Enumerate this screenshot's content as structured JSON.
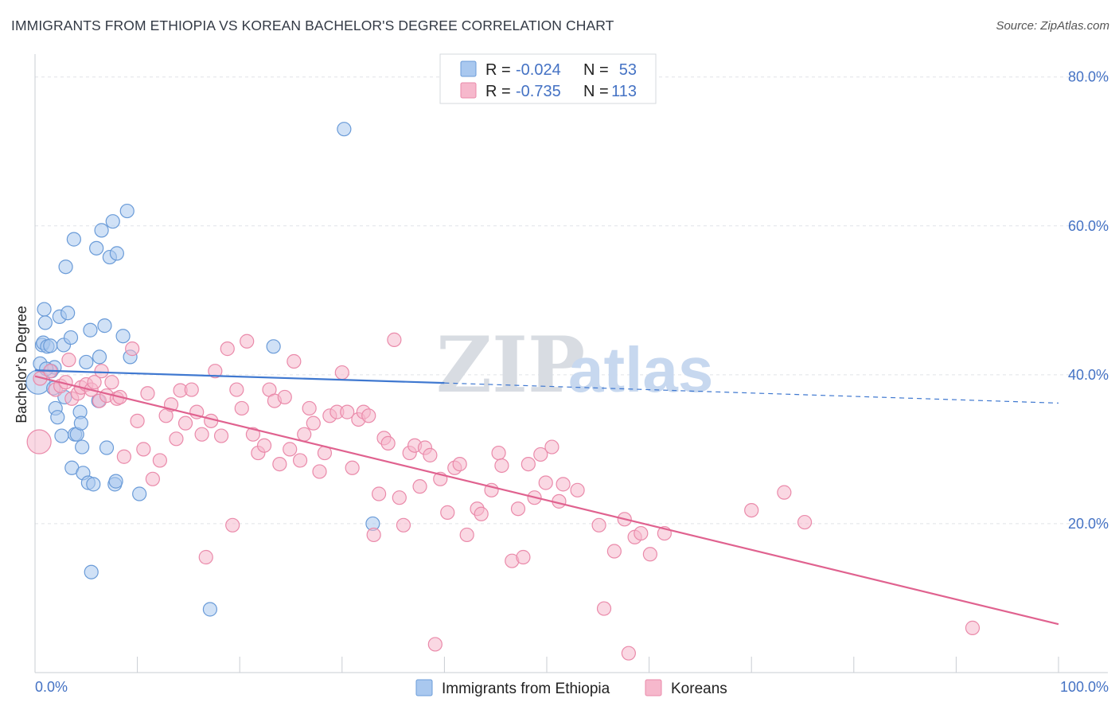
{
  "title": "IMMIGRANTS FROM ETHIOPIA VS KOREAN BACHELOR'S DEGREE CORRELATION CHART",
  "source": "Source: ZipAtlas.com",
  "watermark": {
    "zip": "ZIP",
    "atlas": "atlas"
  },
  "legend": {
    "rows": [
      {
        "r_label": "R =",
        "r_value": "-0.024",
        "n_label": "N =",
        "n_value": "53",
        "color": "#a9c8ef"
      },
      {
        "r_label": "R =",
        "r_value": "-0.735",
        "n_label": "N =",
        "n_value": "113",
        "color": "#f6b8cc"
      }
    ]
  },
  "chart_data": {
    "type": "scatter",
    "title": "IMMIGRANTS FROM ETHIOPIA VS KOREAN BACHELOR'S DEGREE CORRELATION CHART",
    "xlabel": "",
    "ylabel": "Bachelor's Degree",
    "xlim": [
      0,
      100
    ],
    "ylim": [
      0,
      82
    ],
    "x_tick_labels": [
      "0.0%",
      "100.0%"
    ],
    "y_ticks": [
      {
        "value": 80,
        "label": "80.0%"
      },
      {
        "value": 60,
        "label": "60.0%"
      },
      {
        "value": 40,
        "label": "40.0%"
      },
      {
        "value": 20,
        "label": "20.0%"
      }
    ],
    "grid": "horizontal dashed",
    "legend_placement": "top-center",
    "series": [
      {
        "name": "Immigrants from Ethiopia",
        "color": "#a9c8ef",
        "stroke": "#6a9bd8",
        "trend": {
          "x0": 0,
          "y0": 40.6,
          "x1": 40,
          "y1": 38.9,
          "dashed_to_x": 100,
          "dashed_to_y": 36.2,
          "color": "#3f78d0"
        },
        "points": [
          [
            0.3,
            39.0
          ],
          [
            0.5,
            41.5
          ],
          [
            0.7,
            44.0
          ],
          [
            0.8,
            44.3
          ],
          [
            0.9,
            48.8
          ],
          [
            1.0,
            47.0
          ],
          [
            1.2,
            43.8
          ],
          [
            1.5,
            43.9
          ],
          [
            1.6,
            40.5
          ],
          [
            1.8,
            38.2
          ],
          [
            1.9,
            41.0
          ],
          [
            2.0,
            35.5
          ],
          [
            2.2,
            34.3
          ],
          [
            2.4,
            47.8
          ],
          [
            2.6,
            31.8
          ],
          [
            2.8,
            44.0
          ],
          [
            2.9,
            37.0
          ],
          [
            3.0,
            54.5
          ],
          [
            3.2,
            48.3
          ],
          [
            3.5,
            45.0
          ],
          [
            3.6,
            27.5
          ],
          [
            3.8,
            58.2
          ],
          [
            3.9,
            32.0
          ],
          [
            4.1,
            32.0
          ],
          [
            4.4,
            35.0
          ],
          [
            4.5,
            33.5
          ],
          [
            4.6,
            30.3
          ],
          [
            4.7,
            26.8
          ],
          [
            5.0,
            41.7
          ],
          [
            5.2,
            25.5
          ],
          [
            5.4,
            46.0
          ],
          [
            5.5,
            13.5
          ],
          [
            5.7,
            25.3
          ],
          [
            6.0,
            57.0
          ],
          [
            6.2,
            36.5
          ],
          [
            6.3,
            42.4
          ],
          [
            6.5,
            59.4
          ],
          [
            6.8,
            46.6
          ],
          [
            7.0,
            30.2
          ],
          [
            7.3,
            55.8
          ],
          [
            7.6,
            60.6
          ],
          [
            7.8,
            25.3
          ],
          [
            7.9,
            25.7
          ],
          [
            8.0,
            56.3
          ],
          [
            8.6,
            45.2
          ],
          [
            9.0,
            62.0
          ],
          [
            9.3,
            42.4
          ],
          [
            10.2,
            24.0
          ],
          [
            17.1,
            8.5
          ],
          [
            23.3,
            43.8
          ],
          [
            30.2,
            73.0
          ],
          [
            33.0,
            20.0
          ],
          [
            1.1,
            40.8
          ]
        ]
      },
      {
        "name": "Koreans",
        "color": "#f6b8cc",
        "stroke": "#ea8aaa",
        "trend": {
          "x0": 0,
          "y0": 39.8,
          "x1": 100,
          "y1": 6.5,
          "color": "#e0628f"
        },
        "points": [
          [
            0.4,
            31.0
          ],
          [
            0.5,
            39.5
          ],
          [
            1.5,
            40.5
          ],
          [
            2.0,
            38.0
          ],
          [
            2.5,
            38.5
          ],
          [
            3.0,
            39.0
          ],
          [
            3.3,
            42.0
          ],
          [
            3.6,
            36.8
          ],
          [
            4.2,
            37.5
          ],
          [
            4.5,
            38.3
          ],
          [
            5.0,
            38.7
          ],
          [
            5.5,
            38.0
          ],
          [
            5.8,
            39.0
          ],
          [
            6.3,
            36.5
          ],
          [
            6.5,
            40.5
          ],
          [
            7.0,
            37.2
          ],
          [
            7.5,
            39.0
          ],
          [
            8.0,
            36.8
          ],
          [
            8.3,
            37.0
          ],
          [
            8.7,
            29.0
          ],
          [
            9.5,
            43.5
          ],
          [
            10.0,
            33.8
          ],
          [
            10.6,
            30.0
          ],
          [
            11.0,
            37.5
          ],
          [
            11.5,
            26.0
          ],
          [
            12.2,
            28.5
          ],
          [
            12.8,
            34.5
          ],
          [
            13.3,
            36.0
          ],
          [
            13.8,
            31.4
          ],
          [
            14.2,
            37.9
          ],
          [
            14.7,
            33.5
          ],
          [
            15.3,
            38.0
          ],
          [
            15.8,
            35.0
          ],
          [
            16.3,
            32.0
          ],
          [
            16.7,
            15.5
          ],
          [
            17.2,
            33.8
          ],
          [
            17.6,
            40.5
          ],
          [
            18.2,
            31.8
          ],
          [
            18.8,
            43.5
          ],
          [
            19.3,
            19.8
          ],
          [
            19.7,
            38.0
          ],
          [
            20.2,
            35.5
          ],
          [
            20.7,
            44.5
          ],
          [
            21.3,
            32.0
          ],
          [
            21.8,
            29.5
          ],
          [
            22.4,
            30.5
          ],
          [
            22.9,
            38.0
          ],
          [
            23.4,
            36.5
          ],
          [
            23.9,
            28.0
          ],
          [
            24.4,
            37.0
          ],
          [
            24.9,
            30.0
          ],
          [
            25.3,
            41.8
          ],
          [
            25.9,
            28.5
          ],
          [
            26.3,
            32.0
          ],
          [
            26.8,
            35.5
          ],
          [
            27.2,
            33.5
          ],
          [
            27.8,
            27.0
          ],
          [
            28.3,
            29.5
          ],
          [
            28.8,
            34.5
          ],
          [
            29.5,
            35.0
          ],
          [
            30.0,
            40.3
          ],
          [
            30.5,
            35.0
          ],
          [
            31.0,
            27.5
          ],
          [
            31.6,
            34.0
          ],
          [
            32.1,
            35.0
          ],
          [
            32.6,
            34.5
          ],
          [
            33.1,
            18.5
          ],
          [
            33.6,
            24.0
          ],
          [
            34.1,
            31.5
          ],
          [
            34.5,
            30.8
          ],
          [
            35.1,
            44.7
          ],
          [
            35.6,
            23.5
          ],
          [
            36.0,
            19.8
          ],
          [
            36.6,
            29.5
          ],
          [
            37.1,
            30.5
          ],
          [
            37.6,
            25.0
          ],
          [
            38.1,
            30.2
          ],
          [
            38.6,
            29.2
          ],
          [
            39.1,
            3.8
          ],
          [
            39.6,
            26.0
          ],
          [
            40.3,
            21.5
          ],
          [
            41.0,
            27.5
          ],
          [
            41.5,
            28.0
          ],
          [
            42.2,
            18.5
          ],
          [
            43.2,
            22.0
          ],
          [
            43.6,
            21.3
          ],
          [
            44.6,
            24.5
          ],
          [
            45.3,
            29.5
          ],
          [
            45.6,
            27.8
          ],
          [
            46.6,
            15.0
          ],
          [
            47.2,
            22.0
          ],
          [
            47.7,
            15.5
          ],
          [
            48.2,
            28.0
          ],
          [
            48.8,
            23.5
          ],
          [
            49.4,
            29.3
          ],
          [
            49.9,
            25.5
          ],
          [
            50.5,
            30.3
          ],
          [
            51.2,
            23.0
          ],
          [
            51.6,
            25.3
          ],
          [
            53.0,
            24.5
          ],
          [
            55.1,
            19.8
          ],
          [
            55.6,
            8.6
          ],
          [
            56.6,
            16.3
          ],
          [
            57.6,
            20.6
          ],
          [
            58.6,
            18.2
          ],
          [
            59.2,
            18.7
          ],
          [
            60.1,
            15.9
          ],
          [
            61.5,
            18.7
          ],
          [
            70.0,
            21.8
          ],
          [
            73.2,
            24.2
          ],
          [
            75.2,
            20.2
          ],
          [
            91.6,
            6.0
          ],
          [
            58.0,
            2.6
          ]
        ]
      }
    ]
  },
  "bottom_legend": {
    "items": [
      {
        "label": "Immigrants from Ethiopia",
        "color": "#a9c8ef"
      },
      {
        "label": "Koreans",
        "color": "#f6b8cc"
      }
    ]
  }
}
